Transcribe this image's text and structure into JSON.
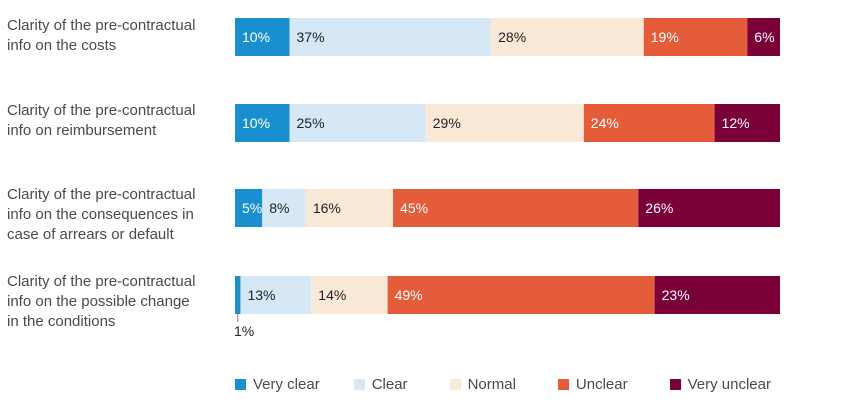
{
  "chart_data": {
    "type": "bar",
    "orientation": "horizontal",
    "stacked": true,
    "categories": [
      "Clarity of the pre-contractual\ninfo on the costs",
      "Clarity of the pre-contractual\ninfo on reimbursement",
      "Clarity of the pre-contractual\ninfo on the consequences in\ncase of arrears or default",
      "Clarity of the pre-contractual\ninfo on the possible change\nin the conditions"
    ],
    "series": [
      {
        "name": "Very clear",
        "color": "#1a8fcf",
        "values": [
          10,
          10,
          5,
          1
        ],
        "labels": [
          "10%",
          "10%",
          "5%",
          "1%"
        ]
      },
      {
        "name": "Clear",
        "color": "#d6e8f6",
        "values": [
          37,
          25,
          8,
          13
        ],
        "labels": [
          "37%",
          "25%",
          "8%",
          "13%"
        ]
      },
      {
        "name": "Normal",
        "color": "#fbe9d8",
        "values": [
          28,
          29,
          16,
          14
        ],
        "labels": [
          "28%",
          "29%",
          "16%",
          "14%"
        ]
      },
      {
        "name": "Unclear",
        "color": "#e55c3a",
        "values": [
          19,
          24,
          45,
          49
        ],
        "labels": [
          "19%",
          "24%",
          "45%",
          "49%"
        ]
      },
      {
        "name": "Very unclear",
        "color": "#7a0038",
        "values": [
          6,
          12,
          26,
          23
        ],
        "labels": [
          "6%",
          "12%",
          "26%",
          "23%"
        ]
      }
    ],
    "xlim": [
      0,
      100
    ],
    "legend_position": "bottom",
    "grid": false
  }
}
